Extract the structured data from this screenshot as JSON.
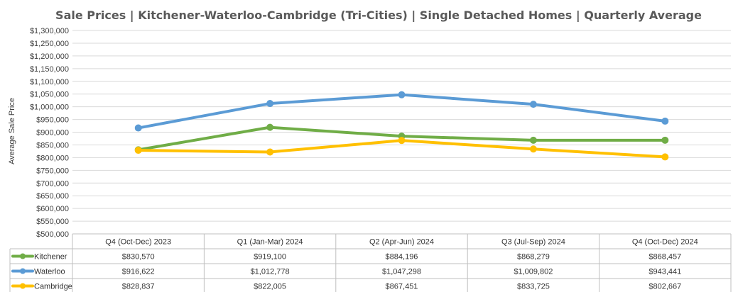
{
  "chart_data": {
    "type": "line",
    "title": "Sale Prices | Kitchener-Waterloo-Cambridge (Tri-Cities) | Single Detached Homes | Quarterly Average",
    "xlabel": "",
    "ylabel": "Average Sale Price",
    "ylim": [
      500000,
      1300000
    ],
    "ystep": 50000,
    "grid": true,
    "legend": "data-table-left",
    "categories": [
      "Q4 (Oct-Dec) 2023",
      "Q1 (Jan-Mar) 2024",
      "Q2 (Apr-Jun) 2024",
      "Q3 (Jul-Sep) 2024",
      "Q4 (Oct-Dec) 2024"
    ],
    "series": [
      {
        "name": "Kitchener",
        "color": "#70AD47",
        "values": [
          830570,
          919100,
          884196,
          868279,
          868457
        ],
        "labels": [
          "$830,570",
          "$919,100",
          "$884,196",
          "$868,279",
          "$868,457"
        ]
      },
      {
        "name": "Waterloo",
        "color": "#5B9BD5",
        "values": [
          916622,
          1012778,
          1047298,
          1009802,
          943441
        ],
        "labels": [
          "$916,622",
          "$1,012,778",
          "$1,047,298",
          "$1,009,802",
          "$943,441"
        ]
      },
      {
        "name": "Cambridge",
        "color": "#FFC000",
        "values": [
          828837,
          822005,
          867451,
          833725,
          802667
        ],
        "labels": [
          "$828,837",
          "$822,005",
          "$867,451",
          "$833,725",
          "$802,667"
        ]
      }
    ]
  }
}
